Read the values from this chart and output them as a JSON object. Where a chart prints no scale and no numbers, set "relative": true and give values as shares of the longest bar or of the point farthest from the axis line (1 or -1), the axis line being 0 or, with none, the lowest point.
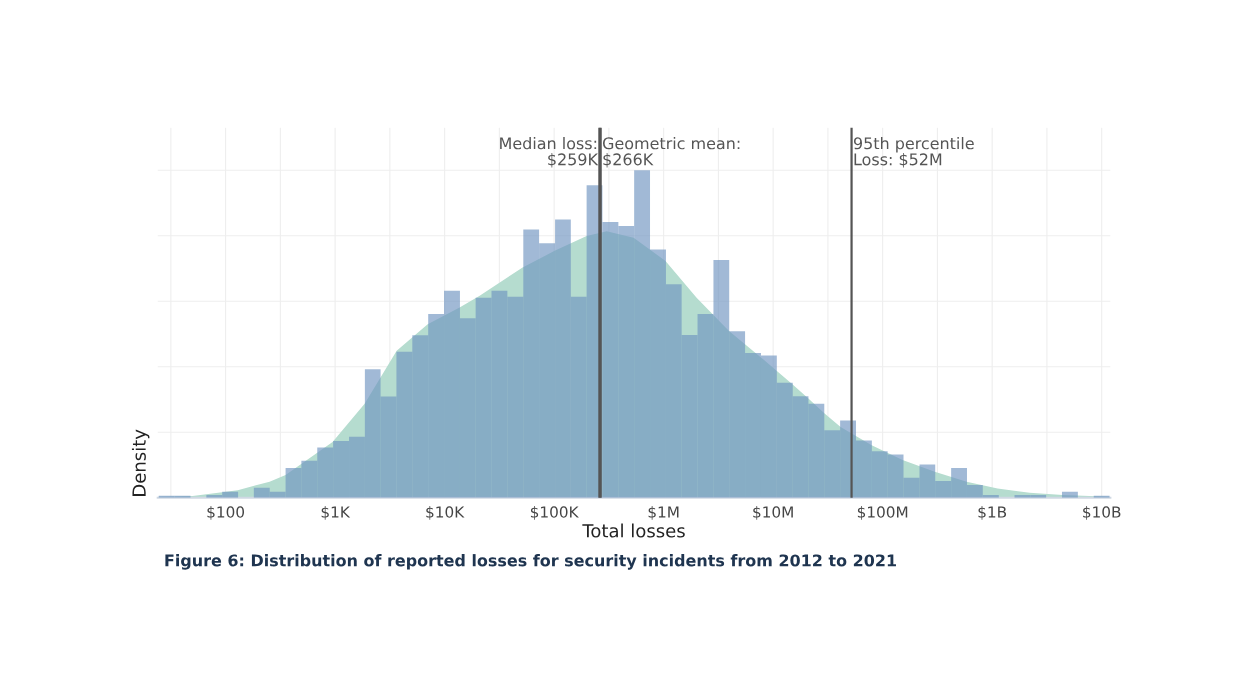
{
  "chart_data": {
    "type": "histogram",
    "xlabel": "Total losses",
    "ylabel": "Density",
    "annotations": [
      "Figure 6: Distribution of reported losses for security incidents from 2012 to 2021"
    ],
    "relative": true,
    "log": "x",
    "grid": true,
    "tick_labels": "x",
    "xlim": [
      24,
      12000000000
    ],
    "xticks": [
      {
        "value": 100,
        "label": "$100"
      },
      {
        "value": 1000,
        "label": "$1K"
      },
      {
        "value": 10000,
        "label": "$10K"
      },
      {
        "value": 100000,
        "label": "$100K"
      },
      {
        "value": 1000000,
        "label": "$1M"
      },
      {
        "value": 10000000,
        "label": "$10M"
      },
      {
        "value": 100000000,
        "label": "$100M"
      },
      {
        "value": 1000000000,
        "label": "$1B"
      },
      {
        "value": 10000000000,
        "label": "$10B"
      }
    ],
    "ref_lines": [
      {
        "axis": "x",
        "value": 259000,
        "label": "Median loss:\n$259K",
        "color": "#555555"
      },
      {
        "axis": "x",
        "value": 266000,
        "label": "Geometric mean:\n$266K",
        "color": "#555555"
      },
      {
        "axis": "x",
        "value": 52000000,
        "label": "95th percentile\nLoss: $52M",
        "color": "#555555"
      }
    ],
    "series": [
      {
        "type": "area",
        "color": "#b5dccf",
        "x": [
          24.4,
          50,
          129,
          252,
          353,
          494,
          948,
          1860,
          3650,
          7000,
          13700,
          20900,
          51500,
          101000,
          198000,
          302000,
          532000,
          1040000,
          2000000,
          3930000,
          7690000,
          14800000,
          21100000,
          29500000,
          41300000,
          79400000,
          152000000,
          299000000,
          585000000,
          1120000000,
          2200000000,
          4410000000,
          11800000000
        ],
        "values": [
          0.003,
          0.005,
          0.023,
          0.049,
          0.069,
          0.104,
          0.17,
          0.287,
          0.449,
          0.53,
          0.581,
          0.617,
          0.703,
          0.754,
          0.799,
          0.814,
          0.794,
          0.723,
          0.611,
          0.51,
          0.429,
          0.348,
          0.302,
          0.257,
          0.216,
          0.16,
          0.115,
          0.079,
          0.049,
          0.028,
          0.015,
          0.008,
          0.003
        ]
      },
      {
        "color": "#6f93c0",
        "bins": [
          24.5,
          34.2,
          47.8,
          66.7,
          93.1,
          130,
          181,
          253,
          353,
          492,
          687,
          959,
          1340,
          1870,
          2600,
          3630,
          5070,
          7080,
          9880,
          13800,
          19200,
          26800,
          37400,
          52300,
          72900,
          102000,
          142000,
          198000,
          276000,
          386000,
          538000,
          751000,
          1050000,
          1460000,
          2040000,
          2850000,
          3970000,
          5540000,
          7740000,
          10800000,
          15100000,
          21000000,
          29300000,
          40900000,
          57100000,
          79700000,
          111000000,
          155000000,
          217000000,
          302000000,
          422000000,
          589000000,
          821000000,
          1150000000,
          1600000000,
          2230000000,
          3110000000,
          4340000000,
          6060000000,
          8460000000,
          11800000000
        ],
        "values": [
          0.006,
          0.006,
          0,
          0.008,
          0.018,
          0,
          0.03,
          0.018,
          0.091,
          0.113,
          0.153,
          0.173,
          0.186,
          0.392,
          0.309,
          0.446,
          0.496,
          0.561,
          0.632,
          0.548,
          0.611,
          0.632,
          0.614,
          0.819,
          0.777,
          0.85,
          0.614,
          0.954,
          0.842,
          0.83,
          1.0,
          0.758,
          0.652,
          0.497,
          0.561,
          0.726,
          0.508,
          0.442,
          0.434,
          0.351,
          0.31,
          0.287,
          0.206,
          0.236,
          0.175,
          0.142,
          0.132,
          0.061,
          0.101,
          0.051,
          0.091,
          0.039,
          0.008,
          0,
          0.008,
          0.008,
          0,
          0.018,
          0,
          0.006
        ]
      }
    ]
  }
}
